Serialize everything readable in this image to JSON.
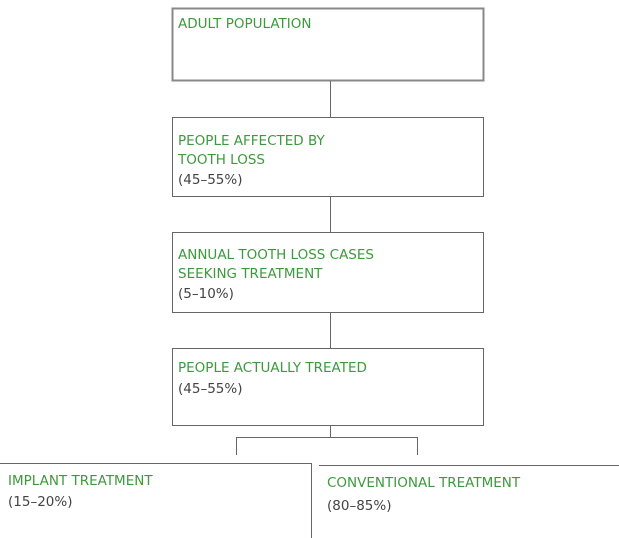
{
  "nodes": [
    {
      "label": [
        "ADULT POPULATION"
      ]
    },
    {
      "label": [
        "PEOPLE AFFECTED BY",
        "TOOTH LOSS"
      ],
      "share": "(45–55%)"
    },
    {
      "label": [
        "ANNUAL TOOTH LOSS CASES",
        "SEEKING TREATMENT"
      ],
      "share": "(5–10%)"
    },
    {
      "label": [
        "PEOPLE ACTUALLY TREATED"
      ],
      "share": "(45–55%)"
    },
    {
      "label": [
        "IMPLANT TREATMENT"
      ],
      "share": "(15–20%)"
    },
    {
      "label": [
        "CONVENTIONAL TREATMENT"
      ],
      "share": "(80–85%)"
    }
  ]
}
